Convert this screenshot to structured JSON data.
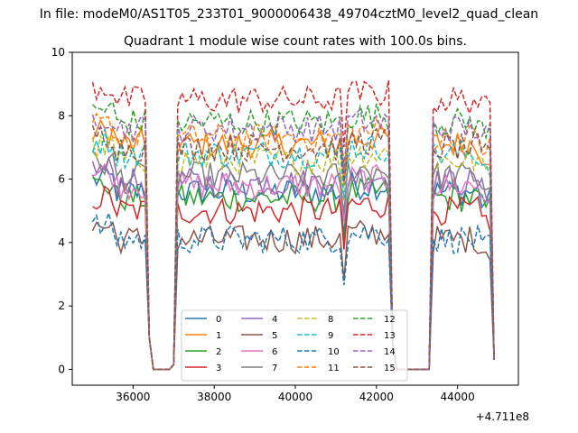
{
  "suptitle": "In file: modeM0/AS1T05_233T01_9000006438_49704cztM0_level2_quad_clean",
  "chart_data": {
    "type": "line",
    "title": "Quadrant 1 module wise count rates with 100.0s bins.",
    "xlabel": "",
    "ylabel": "",
    "x_offset_label": "+4.711e8",
    "xlim": [
      34500,
      45500
    ],
    "ylim": [
      -0.5,
      10
    ],
    "x_ticks": [
      36000,
      38000,
      40000,
      42000,
      44000
    ],
    "y_ticks": [
      0,
      2,
      4,
      6,
      8,
      10
    ],
    "grid": false,
    "legend": {
      "placement": "lower center",
      "columns": 4
    },
    "segments": [
      {
        "x0": 35000,
        "x1": 36300,
        "drop_end": 36500
      },
      {
        "x0": 37100,
        "x1": 41100,
        "gap_dip": 41200
      },
      {
        "x0": 41300,
        "x1": 42300,
        "drop_end": 42500
      },
      {
        "x0": 43400,
        "x1": 44900
      }
    ],
    "series": [
      {
        "name": "0",
        "color": "#1f77b4",
        "style": "solid",
        "level": 5.6
      },
      {
        "name": "1",
        "color": "#ff7f0e",
        "style": "solid",
        "level": 7.1
      },
      {
        "name": "2",
        "color": "#2ca02c",
        "style": "solid",
        "level": 5.4
      },
      {
        "name": "3",
        "color": "#d62728",
        "style": "solid",
        "level": 5.0
      },
      {
        "name": "4",
        "color": "#9467bd",
        "style": "solid",
        "level": 5.9
      },
      {
        "name": "5",
        "color": "#8c564b",
        "style": "solid",
        "level": 4.1
      },
      {
        "name": "6",
        "color": "#e377c2",
        "style": "solid",
        "level": 5.8
      },
      {
        "name": "7",
        "color": "#7f7f7f",
        "style": "solid",
        "level": 6.1
      },
      {
        "name": "8",
        "color": "#bcbd22",
        "style": "dashed",
        "level": 6.6
      },
      {
        "name": "9",
        "color": "#17becf",
        "style": "dashed",
        "level": 6.8
      },
      {
        "name": "10",
        "color": "#1f77b4",
        "style": "dashed",
        "level": 4.1
      },
      {
        "name": "11",
        "color": "#ff7f0e",
        "style": "dashed",
        "level": 7.3
      },
      {
        "name": "12",
        "color": "#2ca02c",
        "style": "dashed",
        "level": 7.8
      },
      {
        "name": "13",
        "color": "#d62728",
        "style": "dashed",
        "level": 8.5
      },
      {
        "name": "14",
        "color": "#9467bd",
        "style": "dashed",
        "level": 7.6
      },
      {
        "name": "15",
        "color": "#8c564b",
        "style": "dashed",
        "level": 7.0
      }
    ]
  }
}
